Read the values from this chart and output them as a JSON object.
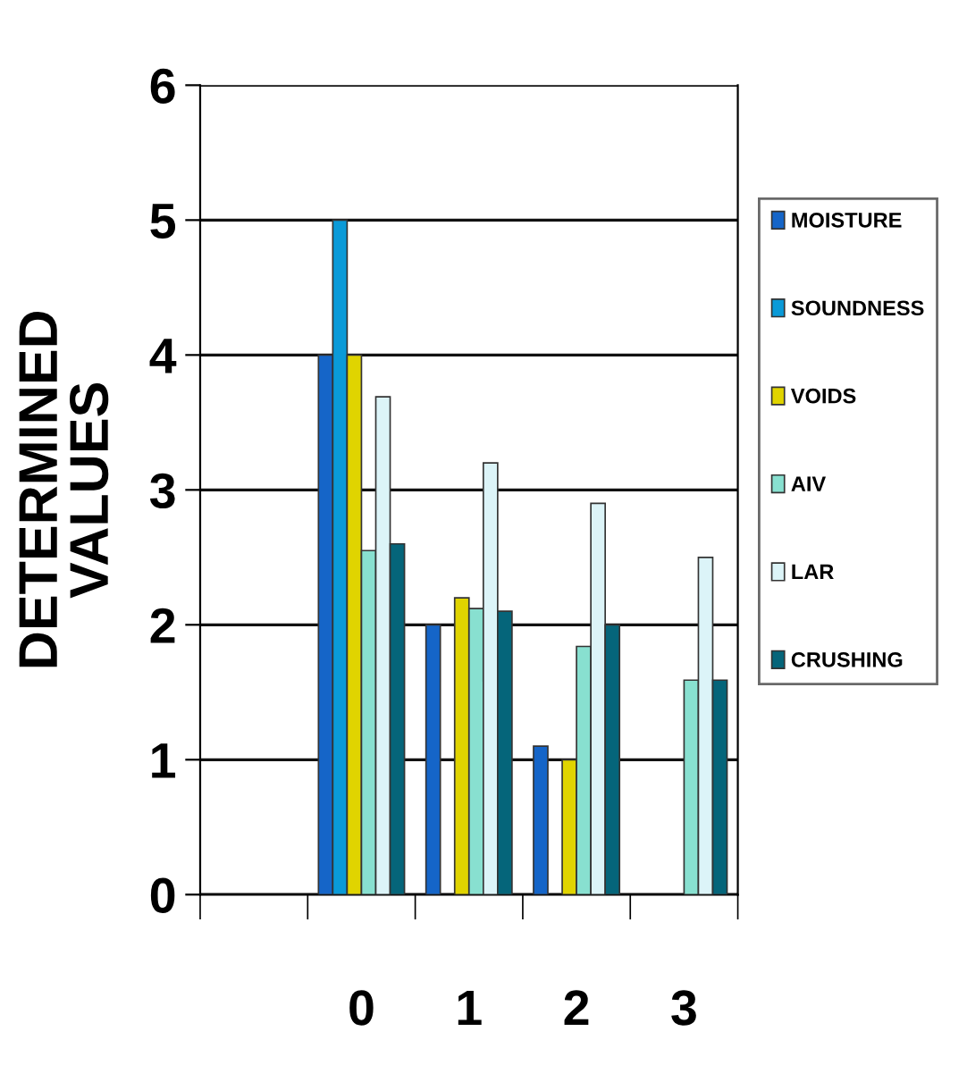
{
  "chart_data": {
    "type": "bar",
    "ylabel": "DETERMINED VALUES",
    "categories": [
      null,
      "0",
      "1",
      "2",
      "3"
    ],
    "series": [
      {
        "name": "MOISTURE",
        "color": "#1565c8",
        "values": [
          null,
          4,
          2,
          1.1,
          null
        ]
      },
      {
        "name": "SOUNDNESS",
        "color": "#0a9ad8",
        "values": [
          null,
          5,
          null,
          null,
          null
        ]
      },
      {
        "name": "VOIDS",
        "color": "#e0d400",
        "values": [
          null,
          4,
          2.2,
          1.0,
          null
        ]
      },
      {
        "name": "AIV",
        "color": "#88e0d0",
        "values": [
          null,
          2.55,
          2.12,
          1.84,
          1.59
        ]
      },
      {
        "name": "LAR",
        "color": "#dcf4f8",
        "values": [
          null,
          3.69,
          3.2,
          2.9,
          2.5
        ]
      },
      {
        "name": "CRUSHING",
        "color": "#05657a",
        "values": [
          null,
          2.6,
          2.1,
          2.0,
          1.59
        ]
      }
    ],
    "ylim": [
      0,
      6
    ],
    "yticks": [
      0,
      1,
      2,
      3,
      4,
      5,
      6
    ],
    "grid": "y",
    "legend": "right"
  }
}
